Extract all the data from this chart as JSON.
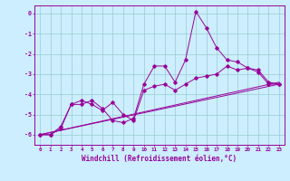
{
  "background_color": "#cceeff",
  "grid_color": "#99cccc",
  "line_color": "#990099",
  "xlabel": "Windchill (Refroidissement éolien,°C)",
  "xlabel_fontsize": 5.5,
  "yticks": [
    0,
    -1,
    -2,
    -3,
    -4,
    -5,
    -6
  ],
  "xticks": [
    0,
    1,
    2,
    3,
    4,
    5,
    6,
    7,
    8,
    9,
    10,
    11,
    12,
    13,
    14,
    15,
    16,
    17,
    18,
    19,
    20,
    21,
    22,
    23
  ],
  "xlim": [
    -0.5,
    23.5
  ],
  "ylim": [
    -6.5,
    0.4
  ],
  "series1_x": [
    0,
    1,
    2,
    3,
    4,
    5,
    6,
    7,
    8,
    9,
    10,
    11,
    12,
    13,
    14,
    15,
    16,
    17,
    18,
    19,
    20,
    21,
    22,
    23
  ],
  "series1_y": [
    -6.0,
    -6.0,
    -5.6,
    -4.5,
    -4.5,
    -4.3,
    -4.7,
    -5.3,
    -5.4,
    -5.2,
    -3.5,
    -2.6,
    -2.6,
    -3.4,
    -2.3,
    0.1,
    -0.7,
    -1.7,
    -2.3,
    -2.4,
    -2.7,
    -2.9,
    -3.5,
    -3.5
  ],
  "series2_x": [
    0,
    1,
    2,
    3,
    4,
    5,
    6,
    7,
    8,
    9,
    10,
    11,
    12,
    13,
    14,
    15,
    16,
    17,
    18,
    19,
    20,
    21,
    22,
    23
  ],
  "series2_y": [
    -6.0,
    -6.0,
    -5.7,
    -4.5,
    -4.3,
    -4.5,
    -4.8,
    -4.4,
    -5.0,
    -5.3,
    -3.8,
    -3.6,
    -3.5,
    -3.8,
    -3.5,
    -3.2,
    -3.1,
    -3.0,
    -2.6,
    -2.8,
    -2.7,
    -2.8,
    -3.4,
    -3.5
  ],
  "series3_x": [
    0,
    23
  ],
  "series3_y": [
    -6.0,
    -3.4
  ],
  "series4_x": [
    0,
    23
  ],
  "series4_y": [
    -6.0,
    -3.5
  ]
}
